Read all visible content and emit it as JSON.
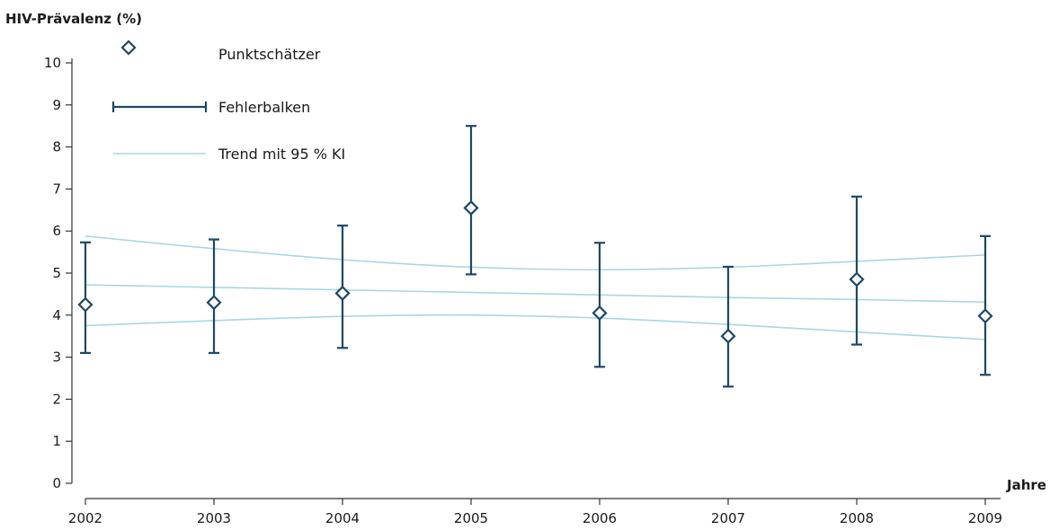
{
  "chart_data": {
    "type": "scatter",
    "ylabel": "HIV-Prävalenz (%)",
    "xlabel": "Jahre",
    "x": [
      2002,
      2003,
      2004,
      2005,
      2006,
      2007,
      2008,
      2009
    ],
    "xlim": [
      2002,
      2009
    ],
    "ylim": [
      0,
      10
    ],
    "y_ticks": [
      0,
      1,
      2,
      3,
      4,
      5,
      6,
      7,
      8,
      9,
      10
    ],
    "x_ticks": [
      "2002",
      "2003",
      "2004",
      "2005",
      "2006",
      "2007",
      "2008",
      "2009"
    ],
    "grid": false,
    "legend": {
      "placement": "top-left",
      "entries": [
        {
          "label": "Punktschätzer",
          "symbol": "diamond"
        },
        {
          "label": "Fehlerbalken",
          "symbol": "errorbar"
        },
        {
          "label": "Trend mit 95 % KI",
          "symbol": "line"
        }
      ]
    },
    "series": [
      {
        "kind": "point_estimate",
        "values": [
          4.25,
          4.3,
          4.52,
          6.55,
          4.05,
          3.5,
          4.85,
          3.98
        ],
        "error_low": [
          3.1,
          3.1,
          3.22,
          4.97,
          2.77,
          2.3,
          3.3,
          2.58
        ],
        "error_high": [
          5.73,
          5.8,
          6.13,
          8.5,
          5.72,
          5.15,
          6.82,
          5.88
        ]
      },
      {
        "kind": "trend",
        "values": [
          4.72,
          4.66,
          4.6,
          4.54,
          4.48,
          4.42,
          4.37,
          4.31
        ]
      },
      {
        "kind": "ci_upper",
        "values": [
          5.88,
          5.58,
          5.32,
          5.14,
          5.08,
          5.14,
          5.28,
          5.43
        ]
      },
      {
        "kind": "ci_lower",
        "values": [
          3.75,
          3.87,
          3.97,
          4.0,
          3.93,
          3.78,
          3.6,
          3.42
        ]
      }
    ],
    "colors": {
      "points": "#1c4868",
      "trend": "#a8d7e3",
      "axis": "#333333"
    }
  }
}
